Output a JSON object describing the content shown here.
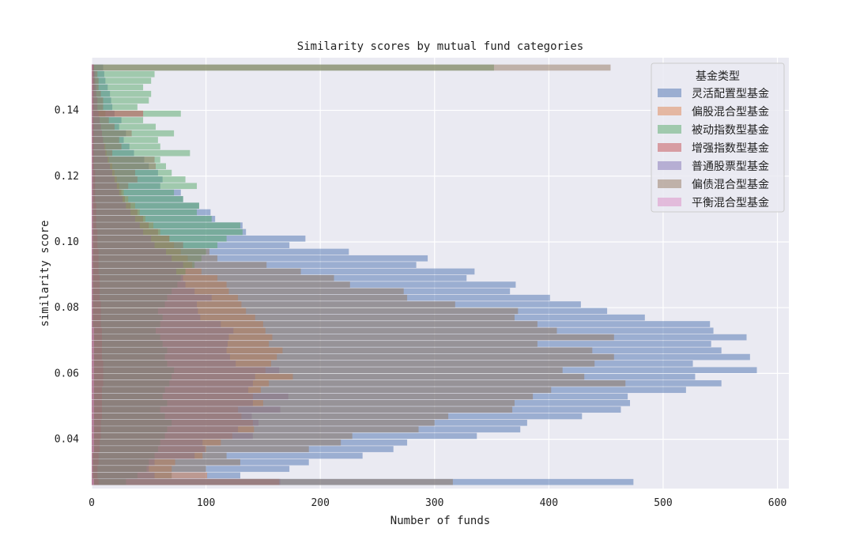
{
  "chart_data": {
    "type": "bar",
    "orientation": "horizontal",
    "stacked": false,
    "title": "Similarity scores by mutual fund categories",
    "xlabel": "Number of funds",
    "ylabel": "similarity score",
    "xlim": [
      0,
      610
    ],
    "ylim": [
      0.025,
      0.156
    ],
    "x_ticks": [
      "0",
      "100",
      "200",
      "300",
      "400",
      "500",
      "600"
    ],
    "y_ticks": [
      "0.04",
      "0.06",
      "0.08",
      "0.10",
      "0.12",
      "0.14"
    ],
    "grid": true,
    "legend": {
      "title": "基金类型",
      "position": "top-right"
    },
    "y": [
      0.027,
      0.029,
      0.031,
      0.033,
      0.035,
      0.037,
      0.039,
      0.041,
      0.043,
      0.045,
      0.047,
      0.049,
      0.051,
      0.053,
      0.055,
      0.057,
      0.059,
      0.061,
      0.063,
      0.065,
      0.067,
      0.069,
      0.071,
      0.073,
      0.075,
      0.077,
      0.079,
      0.081,
      0.083,
      0.085,
      0.087,
      0.089,
      0.091,
      0.093,
      0.095,
      0.097,
      0.099,
      0.101,
      0.103,
      0.105,
      0.107,
      0.109,
      0.111,
      0.113,
      0.115,
      0.117,
      0.119,
      0.121,
      0.123,
      0.125,
      0.127,
      0.129,
      0.131,
      0.133,
      0.135,
      0.137,
      0.139,
      0.141,
      0.143,
      0.145,
      0.147,
      0.149,
      0.151,
      0.153
    ],
    "series": [
      {
        "name": "灵活配置型基金",
        "color": "#4c72b0",
        "values": [
          474,
          130,
          173,
          190,
          237,
          264,
          276,
          337,
          375,
          381,
          429,
          463,
          471,
          469,
          520,
          551,
          528,
          582,
          526,
          576,
          551,
          542,
          573,
          544,
          541,
          484,
          451,
          428,
          401,
          366,
          371,
          328,
          335,
          284,
          294,
          225,
          173,
          187,
          135,
          132,
          108,
          104,
          94,
          80,
          78,
          60,
          62,
          58,
          50,
          46,
          37,
          33,
          28,
          30,
          24,
          26,
          20,
          18,
          17,
          16,
          14,
          12,
          11,
          10
        ]
      },
      {
        "name": "偏股混合型基金",
        "color": "#dd8452",
        "values": [
          164,
          101,
          70,
          73,
          97,
          100,
          113,
          123,
          142,
          141,
          131,
          128,
          150,
          141,
          148,
          155,
          176,
          152,
          157,
          162,
          167,
          155,
          158,
          152,
          150,
          143,
          135,
          131,
          128,
          120,
          118,
          110,
          96,
          88,
          84,
          78,
          72,
          68,
          60,
          54,
          47,
          42,
          38,
          32,
          28,
          24,
          22,
          20,
          18,
          15,
          13,
          12,
          10,
          9,
          8,
          7,
          6,
          5,
          5,
          4,
          3,
          3,
          2,
          2
        ]
      },
      {
        "name": "被动指数型基金",
        "color": "#55a868",
        "values": [
          30,
          40,
          48,
          50,
          55,
          58,
          60,
          64,
          66,
          70,
          64,
          60,
          66,
          62,
          64,
          68,
          70,
          72,
          66,
          64,
          66,
          62,
          60,
          56,
          60,
          62,
          58,
          64,
          66,
          70,
          75,
          78,
          82,
          90,
          96,
          100,
          110,
          118,
          132,
          130,
          105,
          92,
          94,
          80,
          72,
          92,
          82,
          70,
          65,
          60,
          86,
          60,
          58,
          72,
          56,
          45,
          78,
          40,
          50,
          52,
          45,
          52,
          55,
          352
        ]
      },
      {
        "name": "增强指数型基金",
        "color": "#c44e52",
        "values": [
          6,
          5,
          5,
          6,
          6,
          7,
          7,
          8,
          8,
          8,
          9,
          9,
          9,
          9,
          9,
          10,
          10,
          10,
          10,
          9,
          9,
          9,
          9,
          9,
          8,
          8,
          8,
          8,
          7,
          7,
          7,
          7,
          6,
          6,
          6,
          6,
          5,
          5,
          5,
          4,
          4,
          4,
          4,
          3,
          3,
          3,
          3,
          3,
          2,
          2,
          2,
          2,
          2,
          2,
          2,
          2,
          45,
          2,
          2,
          2,
          2,
          2,
          2,
          2
        ]
      },
      {
        "name": "普通股票型基金",
        "color": "#8172b3",
        "values": [
          165,
          55,
          50,
          55,
          90,
          99,
          97,
          141,
          128,
          146,
          140,
          165,
          141,
          172,
          137,
          141,
          143,
          164,
          126,
          121,
          118,
          119,
          120,
          124,
          113,
          95,
          93,
          92,
          105,
          90,
          82,
          80,
          74,
          80,
          70,
          65,
          55,
          52,
          45,
          42,
          38,
          34,
          30,
          27,
          24,
          22,
          20,
          18,
          16,
          14,
          12,
          11,
          10,
          9,
          8,
          7,
          6,
          5,
          5,
          4,
          4,
          3,
          3,
          2
        ]
      },
      {
        "name": "偏债混合型基金",
        "color": "#937860",
        "values": [
          316,
          70,
          100,
          130,
          118,
          190,
          218,
          228,
          286,
          300,
          312,
          368,
          370,
          386,
          402,
          467,
          431,
          412,
          440,
          457,
          438,
          390,
          457,
          407,
          390,
          370,
          373,
          318,
          276,
          273,
          226,
          212,
          183,
          153,
          110,
          103,
          80,
          68,
          58,
          50,
          45,
          40,
          34,
          29,
          26,
          32,
          40,
          38,
          56,
          55,
          18,
          26,
          24,
          35,
          20,
          15,
          12,
          10,
          10,
          8,
          6,
          6,
          5,
          454
        ]
      },
      {
        "name": "平衡混合型基金",
        "color": "#da8bc3",
        "values": [
          2,
          1,
          1,
          1,
          1,
          2,
          2,
          2,
          2,
          2,
          2,
          2,
          2,
          2,
          2,
          2,
          2,
          2,
          2,
          2,
          2,
          2,
          2,
          2,
          1,
          1,
          1,
          1,
          1,
          1,
          1,
          1,
          1,
          1,
          1,
          1,
          1,
          1,
          1,
          1,
          1,
          1,
          1,
          1,
          1,
          1,
          1,
          1,
          1,
          1,
          1,
          1,
          1,
          1,
          1,
          1,
          1,
          1,
          1,
          1,
          1,
          1,
          1,
          1
        ]
      }
    ]
  }
}
